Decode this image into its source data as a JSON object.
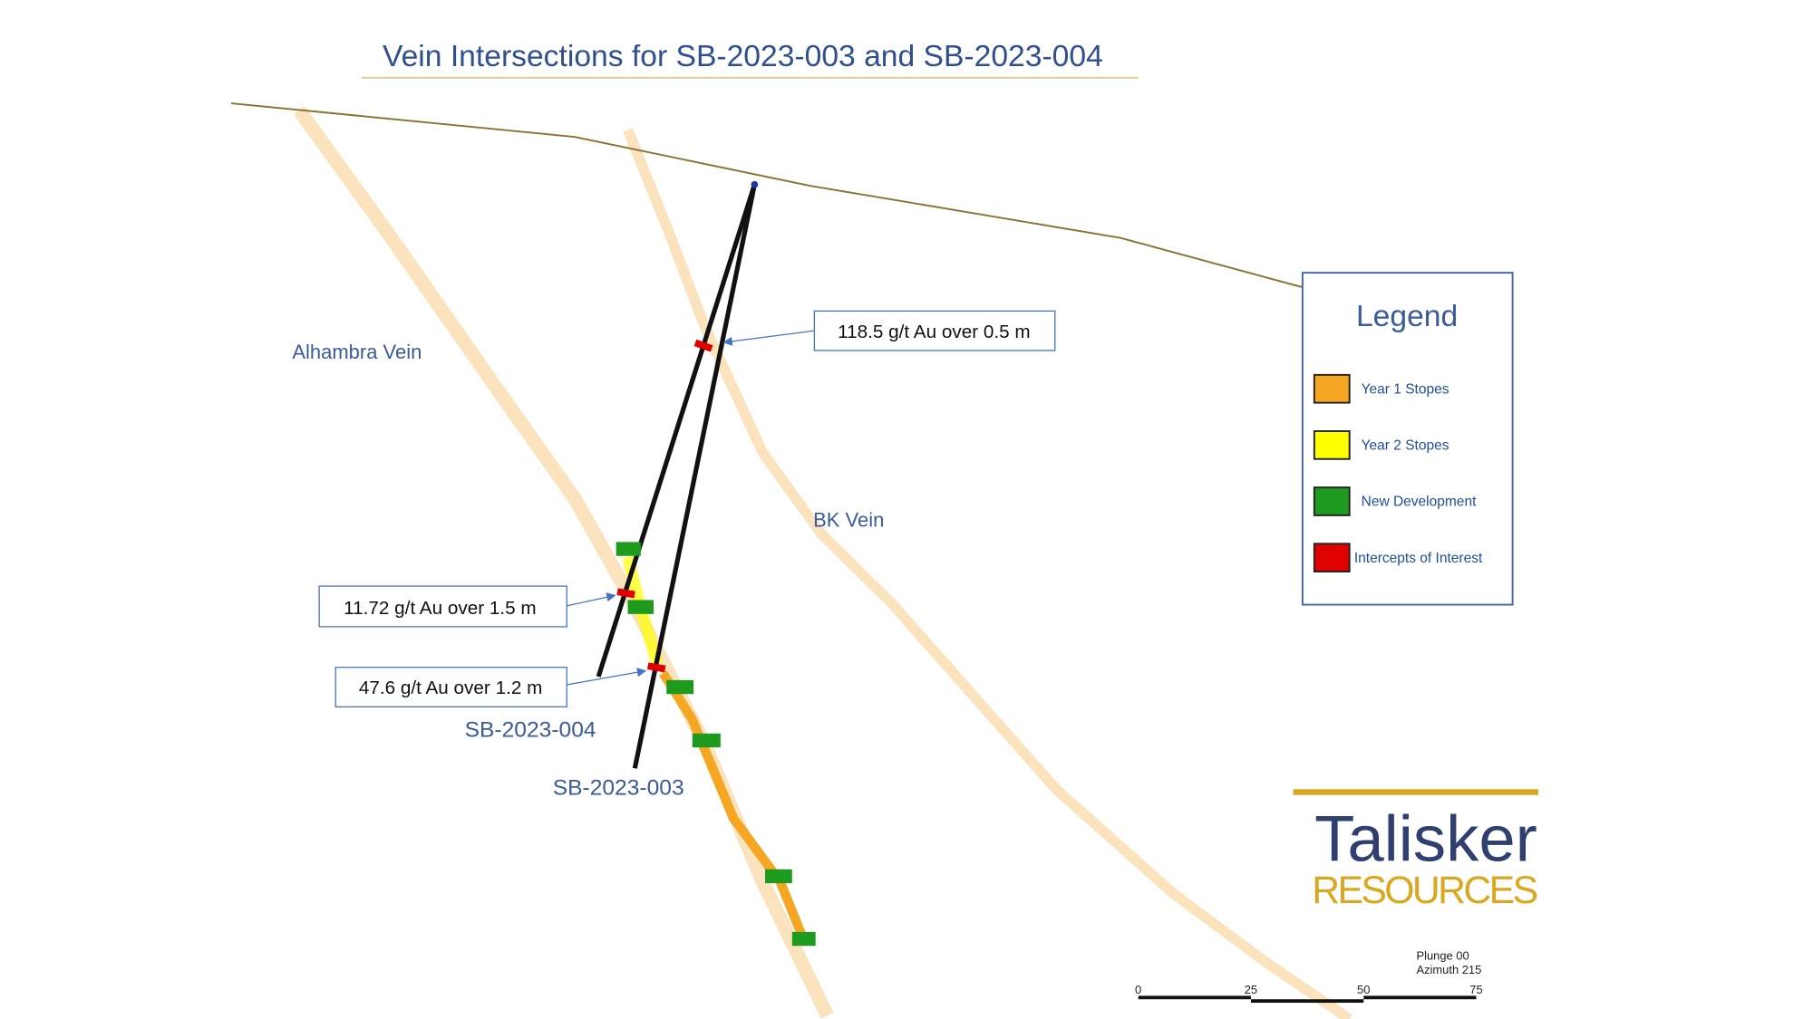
{
  "title": "Vein Intersections for SB-2023-003 and SB-2023-004",
  "veins": {
    "alhambra": "Alhambra Vein",
    "bk": "BK Vein"
  },
  "holes": [
    "SB-2023-004",
    "SB-2023-003"
  ],
  "callouts": [
    "118.5 g/t Au over 0.5 m",
    "11.72 g/t Au over 1.5 m",
    "47.6 g/t Au over 1.2 m"
  ],
  "legend": {
    "title": "Legend",
    "items": [
      {
        "label": "Year 1 Stopes",
        "color": "#f5a623"
      },
      {
        "label": "Year 2 Stopes",
        "color": "#ffff00"
      },
      {
        "label": "New Development",
        "color": "#1e9a1e"
      },
      {
        "label": "Intercepts of Interest",
        "color": "#e00000"
      }
    ]
  },
  "logo": {
    "name": "Talisker",
    "sub": "RESOURCES"
  },
  "orientation": {
    "plunge": "Plunge 00",
    "azimuth": "Azimuth 215"
  },
  "scale_bar": {
    "ticks": [
      "0",
      "25",
      "50",
      "75"
    ]
  }
}
